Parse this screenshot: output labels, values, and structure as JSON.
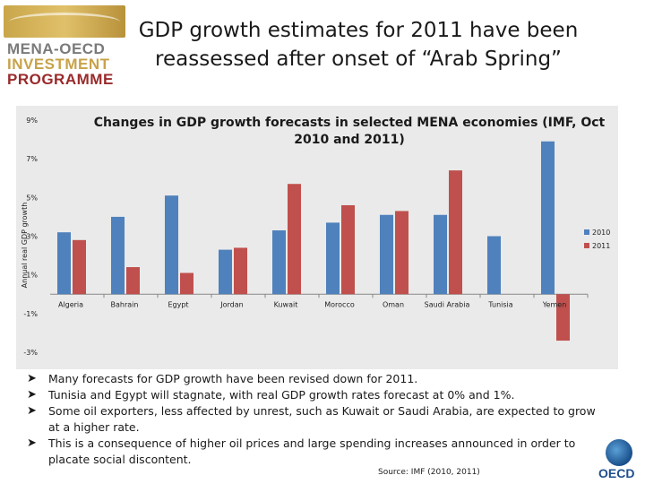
{
  "header": {
    "title_line1": "GDP growth estimates for 2011 have been",
    "title_line2": "reassessed after onset of “Arab Spring”",
    "logo_line1": "MENA-OECD",
    "logo_line2": "INVESTMENT",
    "logo_line3": "PROGRAMME"
  },
  "chart_data": {
    "type": "bar",
    "title_line1": "Changes in GDP growth forecasts in selected MENA economies (IMF, Oct",
    "title_line2": "2010 and 2011)",
    "ylabel": "Annual real GDP growth",
    "xlabel": "",
    "ylim": [
      -3,
      9
    ],
    "yticks": [
      -3,
      -1,
      1,
      3,
      5,
      7,
      9
    ],
    "ytick_labels": [
      "-3%",
      "-1%",
      "1%",
      "3%",
      "5%",
      "7%",
      "9%"
    ],
    "categories": [
      "Algeria",
      "Bahrain",
      "Egypt",
      "Jordan",
      "Kuwait",
      "Morocco",
      "Oman",
      "Saudi Arabia",
      "Tunisia",
      "Yemen"
    ],
    "series": [
      {
        "name": "2010",
        "color": "#4f81bd",
        "values": [
          3.2,
          4.0,
          5.1,
          2.3,
          3.3,
          3.7,
          4.1,
          4.1,
          3.0,
          7.9
        ]
      },
      {
        "name": "2011",
        "color": "#c0504d",
        "values": [
          2.8,
          1.4,
          1.1,
          2.4,
          5.7,
          4.6,
          4.3,
          6.4,
          null,
          -2.4
        ]
      }
    ],
    "legend_position": "right",
    "grid": false
  },
  "bullets": [
    "Many forecasts for GDP growth have been revised down for 2011.",
    "Tunisia and Egypt will  stagnate, with real GDP growth rates  forecast at 0% and 1%.",
    "Some oil exporters, less affected by unrest, such as Kuwait or Saudi Arabia, are expected to grow at a higher rate.",
    "This is a consequence of higher oil prices and large spending increases announced in order to placate social discontent."
  ],
  "source": "Source: IMF (2010, 2011)",
  "footer_logo": "OECD"
}
